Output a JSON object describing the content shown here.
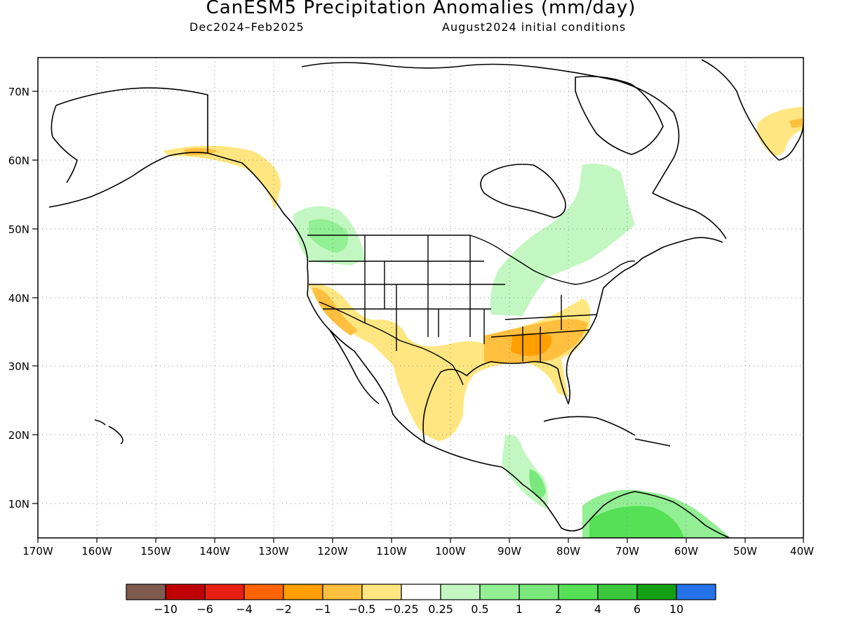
{
  "title": "CanESM5 Precipitation Anomalies (mm/day)",
  "subtitle_left": "Dec2024–Feb2025",
  "subtitle_right": "August2024 initial conditions",
  "lat_labels": [
    "70N",
    "60N",
    "50N",
    "40N",
    "30N",
    "20N",
    "10N"
  ],
  "lon_labels": [
    "170W",
    "160W",
    "150W",
    "140W",
    "130W",
    "120W",
    "110W",
    "100W",
    "90W",
    "80W",
    "70W",
    "60W",
    "50W",
    "40W"
  ],
  "colorbar": {
    "colors": [
      "#7f5a4e",
      "#c00000",
      "#e81f10",
      "#ff6400",
      "#ff9f00",
      "#ffbf3f",
      "#ffe680",
      "#ffffff",
      "#c2f7c2",
      "#93ef93",
      "#7ae87a",
      "#55e055",
      "#3cc83c",
      "#14a014",
      "#2672e8"
    ],
    "labels": [
      "−10",
      "−6",
      "−4",
      "−2",
      "−1",
      "−0.5",
      "−0.25",
      "0.25",
      "0.5",
      "1",
      "2",
      "4",
      "6",
      "10"
    ]
  },
  "colors": {
    "dry_light": "#ffe680",
    "dry_mid": "#ffbf3f",
    "dry_strong": "#ff9f00",
    "wet_light": "#c2f7c2",
    "wet_mid": "#93ef93",
    "wet_strong": "#55e055"
  }
}
